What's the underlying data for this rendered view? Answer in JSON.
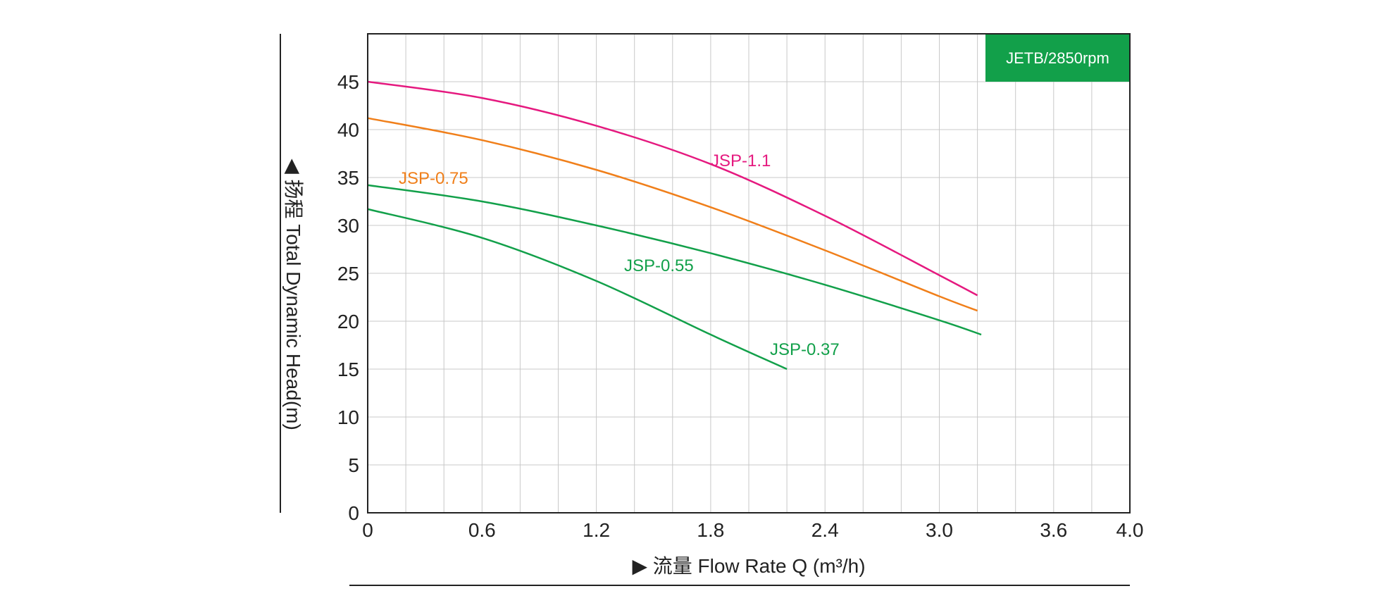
{
  "chart_data": {
    "type": "line",
    "title": "",
    "badge": "JETB/2850rpm",
    "badge_color": "#12a04a",
    "xlabel": "▶ 流量 Flow Rate Q (m³/h)",
    "ylabel": "◀ 扬程 Total Dynamic Head(m)",
    "xlim": [
      0,
      4.0
    ],
    "ylim": [
      0,
      50
    ],
    "x_ticks": [
      "0",
      "0.6",
      "1.2",
      "1.8",
      "2.4",
      "3.0",
      "3.6",
      "4.0"
    ],
    "x_tick_values": [
      0,
      0.6,
      1.2,
      1.8,
      2.4,
      3.0,
      3.6,
      4.0
    ],
    "y_ticks": [
      "0",
      "5",
      "10",
      "15",
      "20",
      "25",
      "30",
      "35",
      "40",
      "45"
    ],
    "y_tick_values": [
      0,
      5,
      10,
      15,
      20,
      25,
      30,
      35,
      40,
      45
    ],
    "grid": true,
    "series": [
      {
        "name": "JSP-1.1",
        "color": "#e5197f",
        "x": [
          0,
          0.6,
          1.2,
          1.8,
          2.4,
          3.0,
          3.2
        ],
        "y": [
          45.0,
          43.3,
          40.4,
          36.4,
          31.0,
          24.8,
          22.7
        ]
      },
      {
        "name": "JSP-0.75",
        "color": "#f07f1a",
        "x": [
          0,
          0.6,
          1.2,
          1.8,
          2.4,
          3.0,
          3.2
        ],
        "y": [
          41.2,
          38.9,
          35.8,
          31.9,
          27.4,
          22.6,
          21.1
        ]
      },
      {
        "name": "JSP-0.55",
        "color": "#12a04a",
        "x": [
          0,
          0.6,
          1.2,
          1.8,
          2.4,
          3.0,
          3.22
        ],
        "y": [
          34.2,
          32.5,
          30.0,
          27.1,
          23.8,
          20.1,
          18.6
        ]
      },
      {
        "name": "JSP-0.37",
        "color": "#12a04a",
        "x": [
          0,
          0.6,
          1.2,
          1.8,
          2.2
        ],
        "y": [
          31.7,
          28.7,
          24.2,
          18.6,
          15.0
        ]
      }
    ]
  }
}
